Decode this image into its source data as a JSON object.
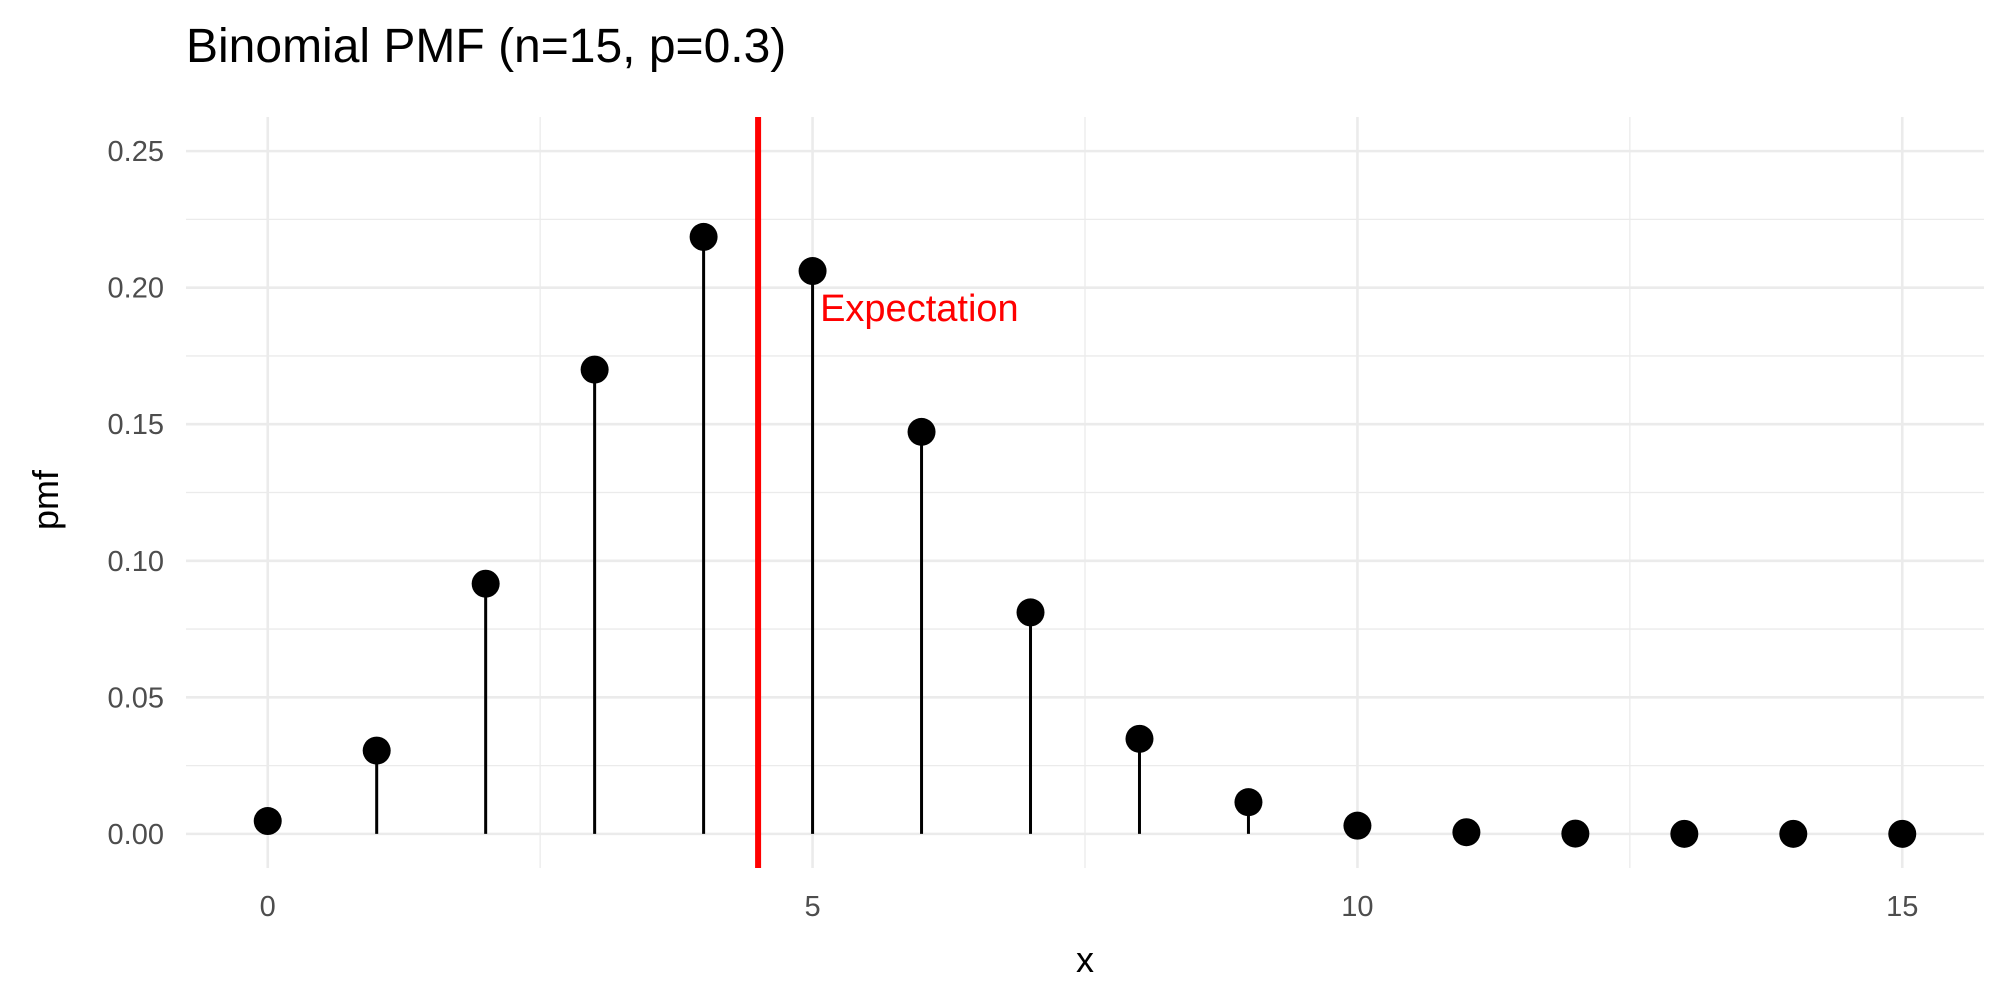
{
  "chart_data": {
    "type": "scatter",
    "style": "lollipop",
    "title": "Binomial PMF (n=15, p=0.3)",
    "xlabel": "x",
    "ylabel": "pmf",
    "xlim": [
      -0.75,
      15.75
    ],
    "ylim": [
      -0.0125,
      0.2625
    ],
    "x_ticks": [
      0,
      5,
      10,
      15
    ],
    "y_ticks": [
      0.0,
      0.05,
      0.1,
      0.15,
      0.2,
      0.25
    ],
    "x_tick_labels": [
      "0",
      "5",
      "10",
      "15"
    ],
    "y_tick_labels": [
      "0.00",
      "0.05",
      "0.10",
      "0.15",
      "0.20",
      "0.25"
    ],
    "grid": true,
    "legend": "none",
    "x": [
      0,
      1,
      2,
      3,
      4,
      5,
      6,
      7,
      8,
      9,
      10,
      11,
      12,
      13,
      14,
      15
    ],
    "values": [
      0.0047,
      0.0305,
      0.0916,
      0.17,
      0.2186,
      0.2061,
      0.1472,
      0.0811,
      0.0348,
      0.0116,
      0.003,
      0.0006,
      0.0001,
      0.0,
      0.0,
      0.0
    ],
    "point_color": "#000000",
    "expectation": {
      "x": 4.5,
      "label": "Expectation",
      "label_y": 0.1925,
      "color": "#ff0000"
    }
  }
}
